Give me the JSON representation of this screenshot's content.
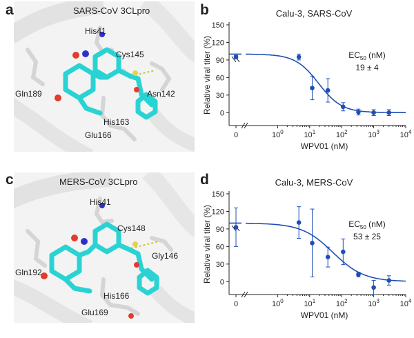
{
  "panels": [
    {
      "letter": "a",
      "title": "SARS-CoV 3CLpro",
      "residues": {
        "his": "His41",
        "cys": "Cys145",
        "gln": "Gln189",
        "asn": "Asn142",
        "his2": "His163",
        "glu": "Glu166"
      }
    },
    {
      "letter": "c",
      "title": "MERS-CoV 3CLpro",
      "residues": {
        "his": "His41",
        "cys": "Cys148",
        "gln": "Gln192",
        "asn": "Gly146",
        "his2": "His166",
        "glu": "Glu169"
      }
    }
  ],
  "colors": {
    "ligand": "#2ad3d3",
    "protein_sticks": "#d9d9d9",
    "oxygen": "#e23c2e",
    "nitrogen": "#3030c8",
    "sulfur": "#e6d24a",
    "fit_line": "#1f4fb5",
    "points": "#1f4fb5",
    "hbond": "#c8c830"
  },
  "chart_data": [
    {
      "letter": "b",
      "type": "scatter",
      "title": "Calu-3, SARS-CoV",
      "xlabel": "WPV01 (nM)",
      "ylabel": "Relative viral titer (%)",
      "ec50_label": "EC50 (nM)",
      "ec50_value": "19 ± 4",
      "x_scale": "log",
      "xlim": [
        0.1,
        10000
      ],
      "ylim": [
        -15,
        150
      ],
      "yticks": [
        0,
        30,
        60,
        90,
        120,
        150
      ],
      "xtick_labels": [
        "0",
        "10^0",
        "10^1",
        "10^2",
        "10^3",
        "10^4"
      ],
      "axis_break": true,
      "points": [
        {
          "x": 0,
          "y": 95,
          "err": 3
        },
        {
          "x": 4.6,
          "y": 95,
          "err": 5
        },
        {
          "x": 12,
          "y": 42,
          "err": 20
        },
        {
          "x": 37,
          "y": 38,
          "err": 20
        },
        {
          "x": 111,
          "y": 10,
          "err": 7
        },
        {
          "x": 333,
          "y": 1,
          "err": 5
        },
        {
          "x": 1000,
          "y": 0,
          "err": 5
        },
        {
          "x": 3000,
          "y": 0,
          "err": 5
        }
      ],
      "fit": {
        "top": 100,
        "bottom": 0,
        "ec50": 19,
        "hill": 1.2
      }
    },
    {
      "letter": "d",
      "type": "scatter",
      "title": "Calu-3, MERS-CoV",
      "xlabel": "WPV01 (nM)",
      "ylabel": "Relative viral titer (%)",
      "ec50_label": "EC50 (nM)",
      "ec50_value": "53 ± 25",
      "x_scale": "log",
      "xlim": [
        0.1,
        10000
      ],
      "ylim": [
        -15,
        150
      ],
      "yticks": [
        0,
        30,
        60,
        90,
        120,
        150
      ],
      "xtick_labels": [
        "0",
        "10^0",
        "10^1",
        "10^2",
        "10^3",
        "10^4"
      ],
      "axis_break": true,
      "points": [
        {
          "x": 0,
          "y": 93,
          "err": 33
        },
        {
          "x": 4.6,
          "y": 101,
          "err": 27
        },
        {
          "x": 12,
          "y": 66,
          "err": 58
        },
        {
          "x": 37,
          "y": 42,
          "err": 17
        },
        {
          "x": 111,
          "y": 51,
          "err": 22
        },
        {
          "x": 333,
          "y": 12,
          "err": 4
        },
        {
          "x": 1000,
          "y": -10,
          "err": 12
        },
        {
          "x": 3000,
          "y": 2,
          "err": 8
        }
      ],
      "fit": {
        "top": 100,
        "bottom": 0,
        "ec50": 53,
        "hill": 0.9
      }
    }
  ]
}
